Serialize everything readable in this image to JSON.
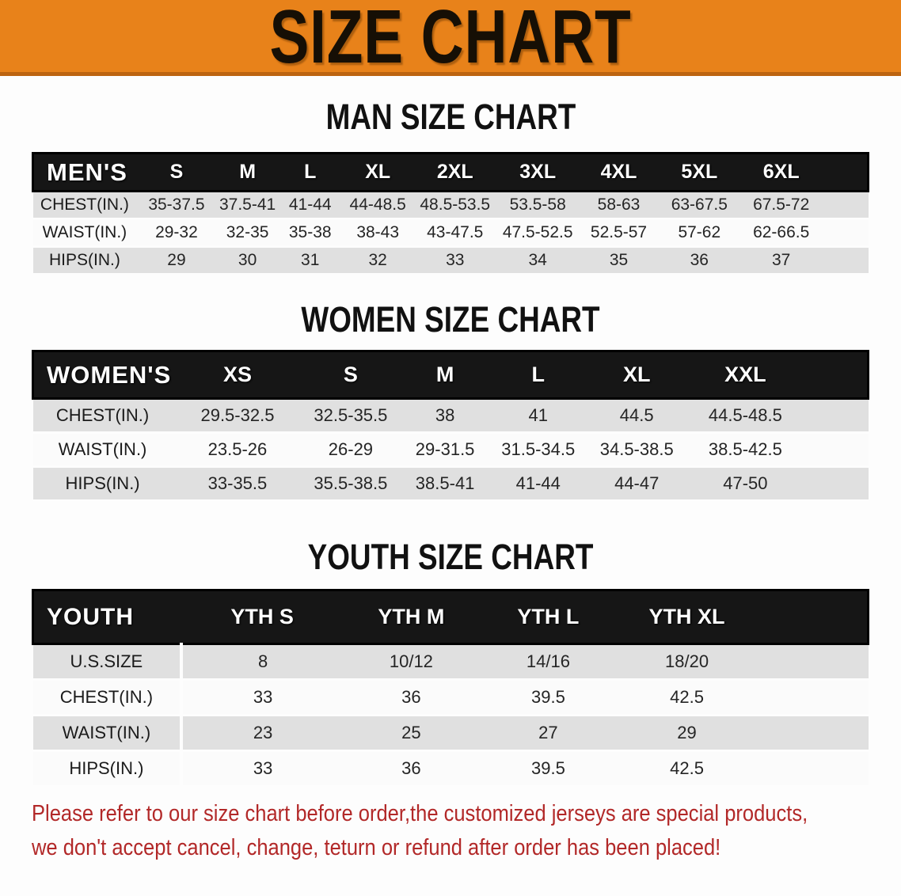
{
  "banner": {
    "title": "SIZE CHART"
  },
  "colors": {
    "banner_orange": "#E8821A",
    "banner_edge": "#BC6410",
    "header_band": "#161616",
    "row_stripe_gray": "#E0E0E0",
    "notice_red": "#B22828"
  },
  "sections": [
    {
      "id": "men",
      "heading": "MAN SIZE CHART",
      "label": "MEN'S",
      "columns": [
        "S",
        "M",
        "L",
        "XL",
        "2XL",
        "3XL",
        "4XL",
        "5XL",
        "6XL"
      ],
      "rows": [
        {
          "label": "CHEST(IN.)",
          "values": [
            "35-37.5",
            "37.5-41",
            "41-44",
            "44-48.5",
            "48.5-53.5",
            "53.5-58",
            "58-63",
            "63-67.5",
            "67.5-72"
          ]
        },
        {
          "label": "WAIST(IN.)",
          "values": [
            "29-32",
            "32-35",
            "35-38",
            "38-43",
            "43-47.5",
            "47.5-52.5",
            "52.5-57",
            "57-62",
            "62-66.5"
          ]
        },
        {
          "label": "HIPS(IN.)",
          "values": [
            "29",
            "30",
            "31",
            "32",
            "33",
            "34",
            "35",
            "36",
            "37"
          ]
        }
      ]
    },
    {
      "id": "women",
      "heading": "WOMEN SIZE CHART",
      "label": "WOMEN'S",
      "columns": [
        "XS",
        "S",
        "M",
        "L",
        "XL",
        "XXL"
      ],
      "rows": [
        {
          "label": "CHEST(IN.)",
          "values": [
            "29.5-32.5",
            "32.5-35.5",
            "38",
            "41",
            "44.5",
            "44.5-48.5"
          ]
        },
        {
          "label": "WAIST(IN.)",
          "values": [
            "23.5-26",
            "26-29",
            "29-31.5",
            "31.5-34.5",
            "34.5-38.5",
            "38.5-42.5"
          ]
        },
        {
          "label": "HIPS(IN.)",
          "values": [
            "33-35.5",
            "35.5-38.5",
            "38.5-41",
            "41-44",
            "44-47",
            "47-50"
          ]
        }
      ]
    },
    {
      "id": "youth",
      "heading": "YOUTH SIZE CHART",
      "label": "YOUTH",
      "columns": [
        "YTH S",
        "YTH M",
        "YTH L",
        "YTH XL"
      ],
      "rows": [
        {
          "label": "U.S.SIZE",
          "values": [
            "8",
            "10/12",
            "14/16",
            "18/20"
          ]
        },
        {
          "label": "CHEST(IN.)",
          "values": [
            "33",
            "36",
            "39.5",
            "42.5"
          ]
        },
        {
          "label": "WAIST(IN.)",
          "values": [
            "23",
            "25",
            "27",
            "29"
          ]
        },
        {
          "label": "HIPS(IN.)",
          "values": [
            "33",
            "36",
            "39.5",
            "42.5"
          ]
        }
      ]
    }
  ],
  "footer": {
    "line1": "Please refer to our size chart before order,the customized jerseys are special products,",
    "line2": "we don't accept cancel, change, teturn or refund after order has been placed!"
  }
}
